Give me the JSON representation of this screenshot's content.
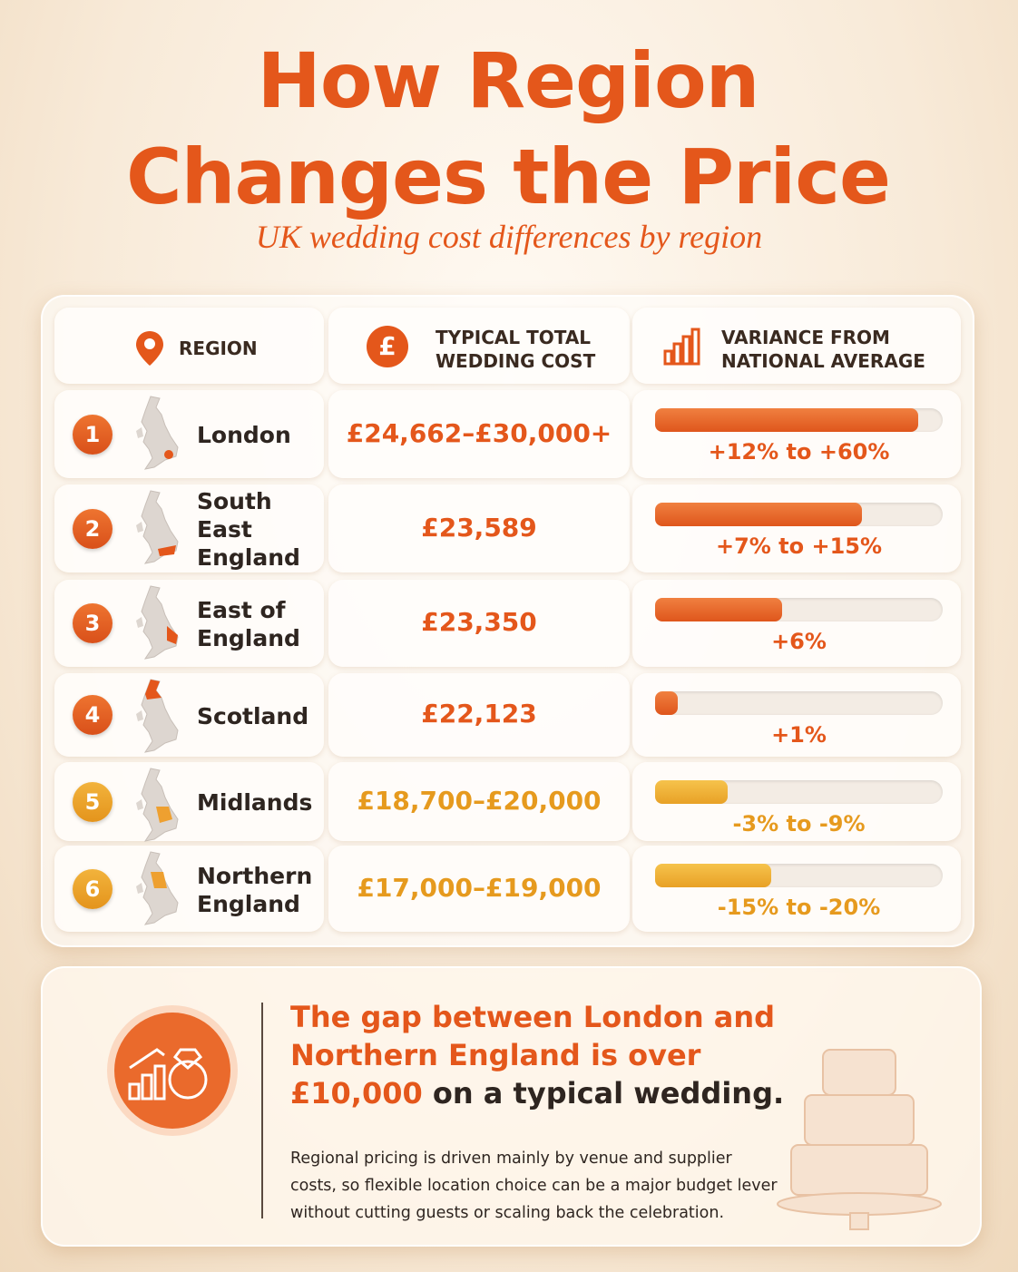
{
  "header": {
    "title": "How Region Changes the Price",
    "subtitle": "UK wedding cost differences by region"
  },
  "table": {
    "columns": [
      "REGION",
      "TYPICAL TOTAL WEDDING COST",
      "VARIANCE FROM NATIONAL AVERAGE"
    ],
    "rows": [
      {
        "rank": 1,
        "region": "London",
        "cost": "£24,662–£30,000+",
        "variance": "+12% to +60%"
      },
      {
        "rank": 2,
        "region": "South East England",
        "cost": "£23,589",
        "variance": "+7% to +15%"
      },
      {
        "rank": 3,
        "region": "East of England",
        "cost": "£23,350",
        "variance": "+6%"
      },
      {
        "rank": 4,
        "region": "Scotland",
        "cost": "£22,123",
        "variance": "+1%"
      },
      {
        "rank": 5,
        "region": "Midlands",
        "cost": "£18,700–£20,000",
        "variance": "-3% to -9%"
      },
      {
        "rank": 6,
        "region": "Northern England",
        "cost": "£17,000–£19,000",
        "variance": "-15% to -20%"
      }
    ]
  },
  "callout": {
    "headline_highlight": "The gap between London and Northern England is over £10,000",
    "headline_rest": "on a typical wedding.",
    "body": "Regional pricing is driven mainly by venue and supplier costs, so flexible location choice can be a major budget lever without cutting guests or scaling back the celebration."
  }
}
